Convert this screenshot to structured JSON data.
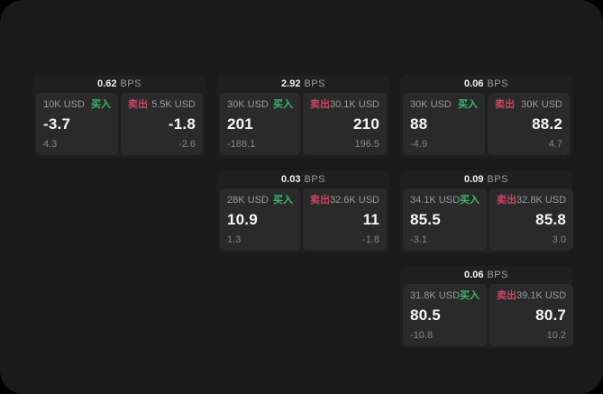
{
  "labels": {
    "bps_unit": "BPS",
    "buy": "买入",
    "sell": "卖出"
  },
  "colors": {
    "page_bg": "#000000",
    "window_bg": "#1a1a1a",
    "card_bg": "#1f1f1f",
    "panel_bg": "#2a2a2a",
    "buy_green": "#3cb96c",
    "sell_red": "#cd4460"
  },
  "cards": [
    {
      "bps": "0.62",
      "buy": {
        "amount": "10K USD",
        "value": "-3.7",
        "sub": "4.3"
      },
      "sell": {
        "amount": "5.5K USD",
        "value": "-1.8",
        "sub": "-2.6"
      }
    },
    {
      "bps": "2.92",
      "buy": {
        "amount": "30K USD",
        "value": "201",
        "sub": "-188.1"
      },
      "sell": {
        "amount": "30.1K USD",
        "value": "210",
        "sub": "196.5"
      }
    },
    {
      "bps": "0.06",
      "buy": {
        "amount": "30K USD",
        "value": "88",
        "sub": "-4.9"
      },
      "sell": {
        "amount": "30K USD",
        "value": "88.2",
        "sub": "4.7"
      }
    },
    {
      "bps": "0.03",
      "buy": {
        "amount": "28K USD",
        "value": "10.9",
        "sub": "1.3"
      },
      "sell": {
        "amount": "32.6K USD",
        "value": "11",
        "sub": "-1.8"
      }
    },
    {
      "bps": "0.09",
      "buy": {
        "amount": "34.1K USD",
        "value": "85.5",
        "sub": "-3.1"
      },
      "sell": {
        "amount": "32.8K USD",
        "value": "85.8",
        "sub": "3.0"
      }
    },
    {
      "bps": "0.06",
      "buy": {
        "amount": "31.8K USD",
        "value": "80.5",
        "sub": "-10.8"
      },
      "sell": {
        "amount": "39.1K USD",
        "value": "80.7",
        "sub": "10.2"
      }
    }
  ]
}
